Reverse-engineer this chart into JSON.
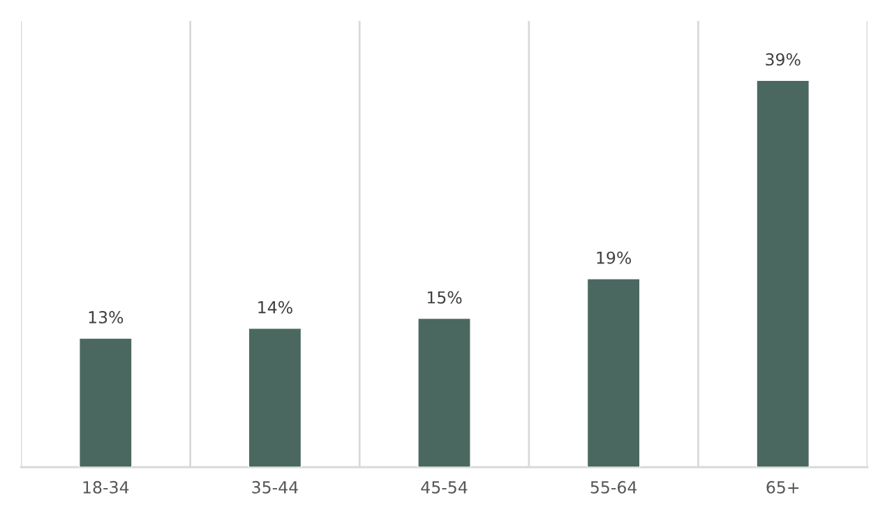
{
  "chart_data": {
    "type": "bar",
    "categories": [
      "18-34",
      "35-44",
      "45-54",
      "55-64",
      "65+"
    ],
    "values": [
      13,
      14,
      15,
      19,
      39
    ],
    "value_labels": [
      "13%",
      "14%",
      "15%",
      "19%",
      "39%"
    ],
    "color": "#4a6860",
    "ylim": [
      0,
      45
    ],
    "tick_labels": "x",
    "grid": false,
    "legend": false
  }
}
